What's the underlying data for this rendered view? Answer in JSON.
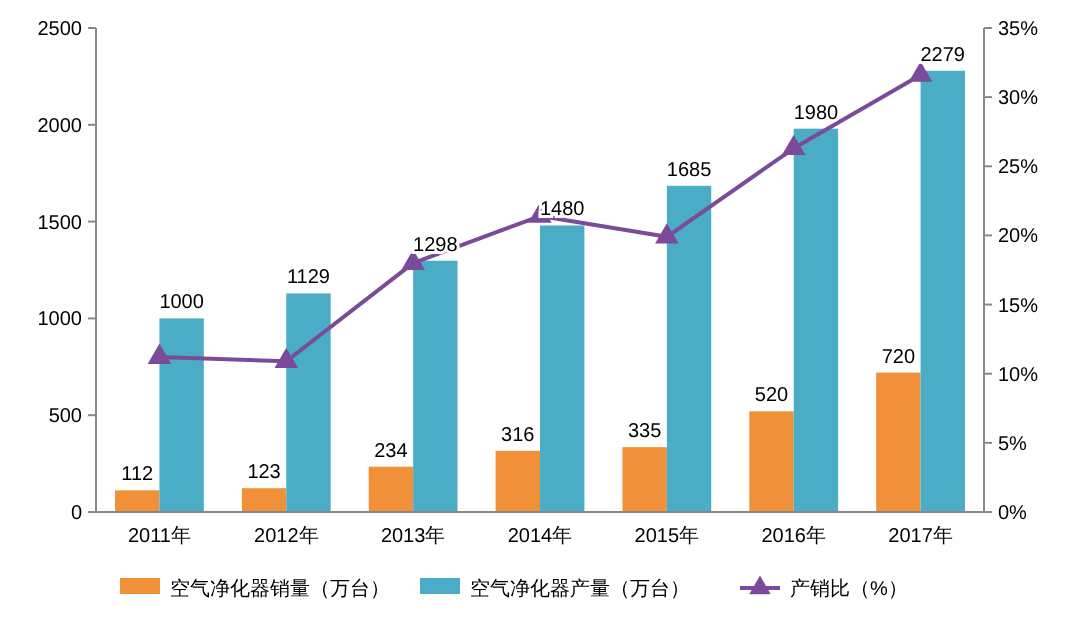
{
  "chart_data": {
    "type": "bar",
    "categories": [
      "2011年",
      "2012年",
      "2013年",
      "2014年",
      "2015年",
      "2016年",
      "2017年"
    ],
    "series": [
      {
        "name": "空气净化器销量（万台）",
        "color": "#f0913a",
        "values": [
          112,
          123,
          234,
          316,
          335,
          520,
          720
        ],
        "value_labels": [
          "112",
          "123",
          "234",
          "316",
          "335",
          "520",
          "720"
        ]
      },
      {
        "name": "空气净化器产量（万台）",
        "color": "#4bacc6",
        "values": [
          1000,
          1129,
          1298,
          1480,
          1685,
          1980,
          2279
        ],
        "value_labels": [
          "1000",
          "1129",
          "1298",
          "1480",
          "1685",
          "1980",
          "2279"
        ]
      },
      {
        "name": "产销比（%）",
        "type": "line",
        "axis": "y2",
        "color": "#7b4a9a",
        "marker": "triangle",
        "values": [
          11.2,
          10.9,
          18.0,
          21.4,
          19.9,
          26.3,
          31.6
        ]
      }
    ],
    "ylim": [
      0,
      2500
    ],
    "yticks": [
      0,
      500,
      1000,
      1500,
      2000,
      2500
    ],
    "y2lim": [
      0,
      35
    ],
    "y2ticks": [
      {
        "value": 0,
        "label": "0%"
      },
      {
        "value": 5,
        "label": "5%"
      },
      {
        "value": 10,
        "label": "10%"
      },
      {
        "value": 15,
        "label": "15%"
      },
      {
        "value": 20,
        "label": "20%"
      },
      {
        "value": 25,
        "label": "25%"
      },
      {
        "value": 30,
        "label": "30%"
      },
      {
        "value": 35,
        "label": "35%"
      }
    ],
    "legend": "bottom"
  }
}
